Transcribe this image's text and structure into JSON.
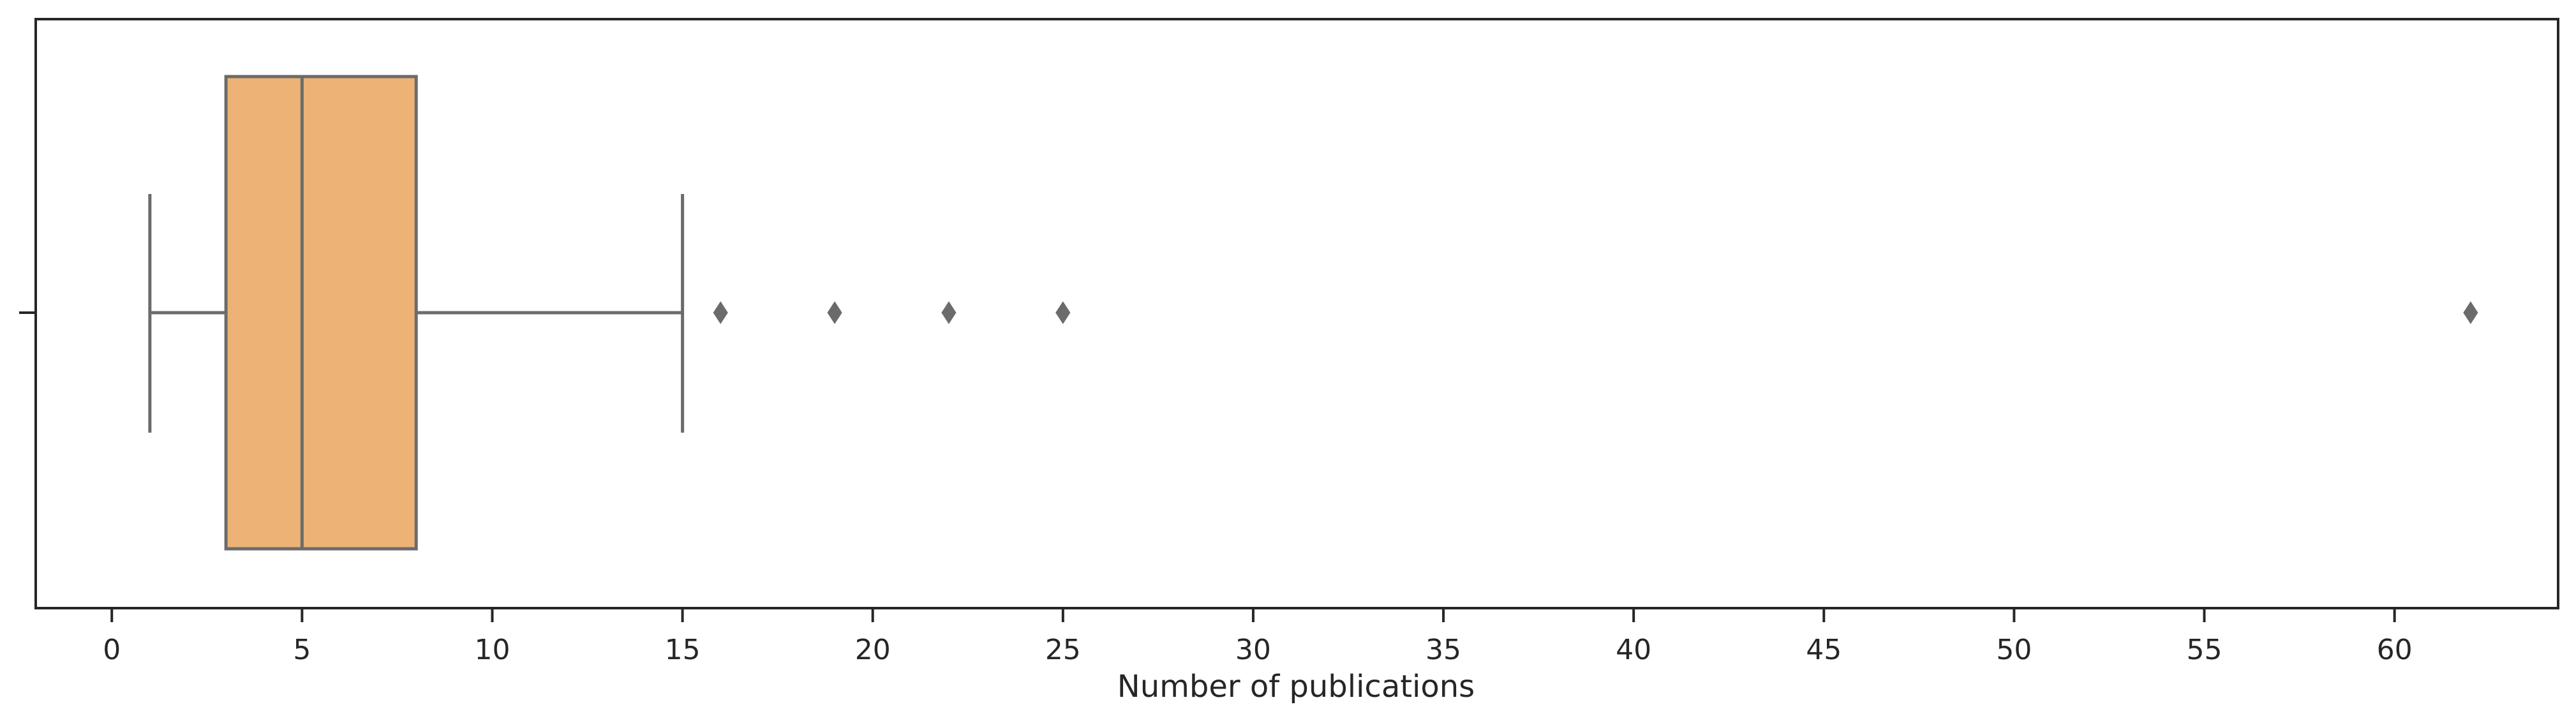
{
  "chart_data": {
    "type": "box",
    "orientation": "horizontal",
    "xlabel": "Number of publications",
    "ylabel": "",
    "xlim": [
      -2,
      64.3
    ],
    "xticks": [
      0,
      5,
      10,
      15,
      20,
      25,
      30,
      35,
      40,
      45,
      50,
      55,
      60
    ],
    "xtick_labels": [
      "0",
      "5",
      "10",
      "15",
      "20",
      "25",
      "30",
      "35",
      "40",
      "45",
      "50",
      "55",
      "60"
    ],
    "grid": false,
    "box": {
      "whisker_low": 1,
      "q1": 3,
      "median": 5,
      "q3": 8,
      "whisker_high": 15,
      "outliers": [
        16,
        19,
        22,
        25,
        62
      ]
    },
    "colors": {
      "box_fill": "#ecb276",
      "line": "#6b6b6b",
      "frame": "#262626"
    }
  }
}
